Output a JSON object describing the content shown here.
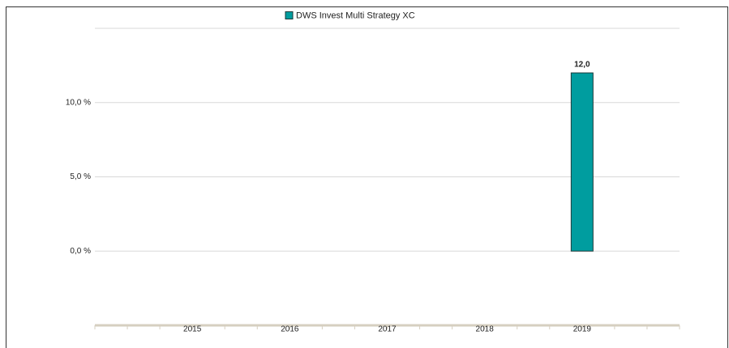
{
  "chart_data": {
    "type": "bar",
    "legend": "DWS Invest Multi Strategy  XC",
    "categories": [
      "2015",
      "2016",
      "2017",
      "2018",
      "2019"
    ],
    "series": [
      {
        "name": "DWS Invest Multi Strategy  XC",
        "color": "#009d9f",
        "values": [
          null,
          null,
          null,
          null,
          12
        ],
        "value_labels": [
          null,
          null,
          null,
          null,
          "12,0"
        ]
      }
    ],
    "ylim": [
      -5,
      15
    ],
    "yticks": [
      {
        "value": 0,
        "label": "0,0 %"
      },
      {
        "value": 5,
        "label": "5,0 %"
      },
      {
        "value": 10,
        "label": "10,0 %"
      }
    ],
    "grid": true
  }
}
